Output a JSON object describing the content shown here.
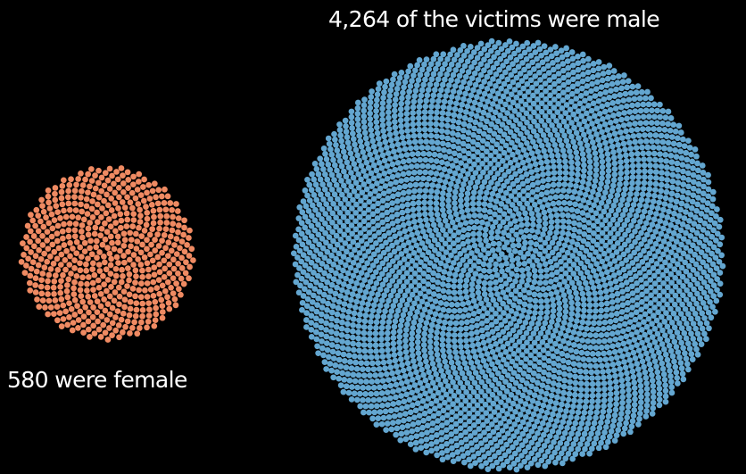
{
  "chart_data": {
    "type": "scatter",
    "title": "",
    "groups": [
      {
        "name": "male",
        "count": 4264,
        "label": "4,264 of the victims were male",
        "color": "#63a6d0"
      },
      {
        "name": "female",
        "count": 580,
        "label": "580 were female",
        "color": "#ef8a62"
      }
    ]
  }
}
